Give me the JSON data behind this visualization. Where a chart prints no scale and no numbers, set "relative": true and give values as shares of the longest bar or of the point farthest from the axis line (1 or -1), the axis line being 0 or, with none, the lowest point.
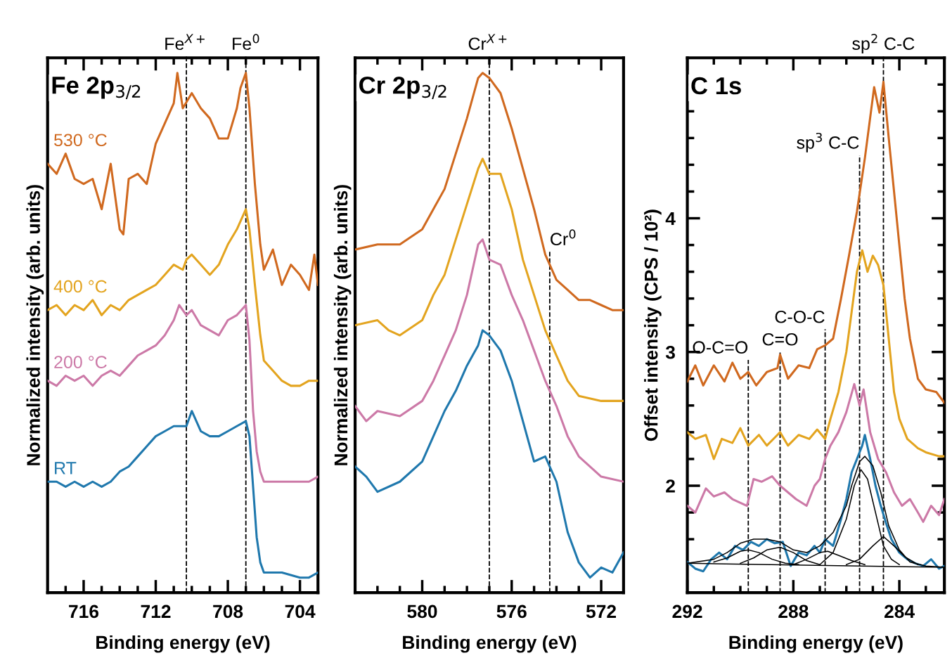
{
  "chart_data": [
    {
      "type": "line",
      "title": "Fe 2p$_{3/2}$",
      "xlabel": "Binding energy (eV)",
      "ylabel": "Normalized intensity (arb. units)",
      "relative": true,
      "xlim": [
        718,
        703
      ],
      "xticks": [
        716,
        712,
        708,
        704,
        {
          "value": 717,
          "label": null
        },
        {
          "value": 715,
          "label": null
        },
        {
          "value": 714,
          "label": null
        },
        {
          "value": 713,
          "label": null
        },
        {
          "value": 711,
          "label": null
        },
        {
          "value": 710,
          "label": null
        },
        {
          "value": 709,
          "label": null
        },
        {
          "value": 707,
          "label": null
        },
        {
          "value": 706,
          "label": null
        },
        {
          "value": 705,
          "label": null
        }
      ],
      "series": [
        {
          "name": "530 °C",
          "color": "#d0691f",
          "x": [
            718,
            717.5,
            717,
            716.5,
            716,
            715.5,
            715,
            714.5,
            714,
            713.8,
            713.5,
            713,
            712.5,
            712,
            711.5,
            711,
            710.8,
            710.5,
            710,
            709.5,
            709,
            708.5,
            708,
            707.5,
            707.3,
            707,
            706.8,
            706.5,
            706.2,
            706,
            705.5,
            705,
            704.5,
            704,
            703.5,
            703.2,
            703
          ],
          "values": [
            0.82,
            0.8,
            0.84,
            0.79,
            0.78,
            0.79,
            0.73,
            0.82,
            0.69,
            0.68,
            0.79,
            0.8,
            0.78,
            0.86,
            0.9,
            0.94,
            1.0,
            0.93,
            0.96,
            0.93,
            0.91,
            0.87,
            0.87,
            0.93,
            0.97,
            1.0,
            0.93,
            0.78,
            0.66,
            0.61,
            0.65,
            0.58,
            0.62,
            0.6,
            0.57,
            0.64,
            0.58
          ]
        },
        {
          "name": "400 °C",
          "color": "#e3a41f",
          "x": [
            718,
            717.5,
            717,
            716.5,
            716,
            715.5,
            715,
            714.5,
            714,
            713.5,
            713,
            712.5,
            712,
            711.5,
            711,
            710.5,
            710.3,
            710,
            709.5,
            709,
            708.5,
            708,
            707.5,
            707,
            706.8,
            706.5,
            706.2,
            706,
            705.5,
            705,
            704.5,
            704,
            703.5,
            703
          ],
          "values": [
            0.53,
            0.54,
            0.52,
            0.54,
            0.53,
            0.55,
            0.52,
            0.54,
            0.53,
            0.55,
            0.56,
            0.57,
            0.58,
            0.6,
            0.62,
            0.61,
            0.63,
            0.64,
            0.62,
            0.6,
            0.62,
            0.66,
            0.69,
            0.73,
            0.69,
            0.58,
            0.48,
            0.43,
            0.41,
            0.39,
            0.38,
            0.38,
            0.39,
            0.39
          ]
        },
        {
          "name": "200 °C",
          "color": "#cc79a7",
          "x": [
            718,
            717.5,
            717,
            716.5,
            716,
            715.5,
            715,
            714.5,
            714,
            713.5,
            713,
            712.5,
            712,
            711.5,
            711,
            710.7,
            710.3,
            710,
            709.5,
            709,
            708.5,
            708,
            707.5,
            707,
            706.8,
            706.6,
            706.4,
            706.2,
            706,
            705,
            704,
            703.5,
            703
          ],
          "values": [
            0.39,
            0.38,
            0.4,
            0.39,
            0.4,
            0.38,
            0.4,
            0.41,
            0.4,
            0.42,
            0.44,
            0.45,
            0.46,
            0.48,
            0.51,
            0.54,
            0.52,
            0.53,
            0.5,
            0.49,
            0.48,
            0.51,
            0.52,
            0.54,
            0.47,
            0.33,
            0.25,
            0.21,
            0.19,
            0.19,
            0.19,
            0.19,
            0.2
          ]
        },
        {
          "name": "RT",
          "color": "#1f78ad",
          "x": [
            718,
            717.5,
            717,
            716.5,
            716,
            715.5,
            715,
            714.5,
            714,
            713.5,
            713,
            712.5,
            712,
            711.5,
            711,
            710.7,
            710.3,
            710,
            709.5,
            709,
            708.5,
            708,
            707.5,
            707,
            706.8,
            706.6,
            706.4,
            706.2,
            706,
            705,
            704,
            703.5,
            703
          ],
          "values": [
            0.19,
            0.19,
            0.18,
            0.19,
            0.18,
            0.19,
            0.18,
            0.19,
            0.21,
            0.22,
            0.24,
            0.26,
            0.28,
            0.29,
            0.3,
            0.3,
            0.3,
            0.33,
            0.29,
            0.28,
            0.28,
            0.29,
            0.3,
            0.31,
            0.28,
            0.18,
            0.08,
            0.03,
            0.01,
            0.01,
            0.0,
            0.0,
            0.01
          ]
        }
      ],
      "ref_lines": [
        {
          "axis": "x",
          "value": 710.3,
          "label": "Fe$^{X+}$",
          "color": "#000000",
          "line_style": "dashed"
        },
        {
          "axis": "x",
          "value": 707.0,
          "label": "Fe$^{0}$",
          "color": "#000000",
          "line_style": "dashed"
        }
      ]
    },
    {
      "type": "line",
      "title": "Cr 2p$_{3/2}$",
      "xlabel": "Binding energy (eV)",
      "ylabel": "Normalized intensity (arb. units)",
      "relative": true,
      "xlim": [
        583,
        571
      ],
      "xticks": [
        580,
        576,
        572,
        {
          "value": 582,
          "label": null
        },
        {
          "value": 581,
          "label": null
        },
        {
          "value": 579,
          "label": null
        },
        {
          "value": 578,
          "label": null
        },
        {
          "value": 577,
          "label": null
        },
        {
          "value": 575,
          "label": null
        },
        {
          "value": 574,
          "label": null
        },
        {
          "value": 573,
          "label": null
        }
      ],
      "series": [
        {
          "color": "#d0691f",
          "x": [
            583,
            582,
            581,
            580,
            579.5,
            579,
            578.5,
            578,
            577.5,
            577.3,
            577,
            576.5,
            576,
            575.5,
            575,
            574.5,
            574,
            573.5,
            573,
            572.5,
            572,
            571.5,
            571
          ],
          "values": [
            0.65,
            0.66,
            0.66,
            0.69,
            0.73,
            0.77,
            0.84,
            0.91,
            0.99,
            1.0,
            0.99,
            0.96,
            0.89,
            0.81,
            0.73,
            0.64,
            0.59,
            0.57,
            0.55,
            0.55,
            0.54,
            0.53,
            0.53
          ]
        },
        {
          "color": "#e3a41f",
          "x": [
            583,
            582,
            581.5,
            581,
            580,
            579.5,
            579,
            578.5,
            578,
            577.5,
            577.3,
            577,
            576.5,
            576,
            575.5,
            575,
            574.5,
            574,
            573.5,
            573,
            572,
            571
          ],
          "values": [
            0.5,
            0.51,
            0.49,
            0.48,
            0.51,
            0.56,
            0.6,
            0.67,
            0.74,
            0.81,
            0.83,
            0.8,
            0.8,
            0.73,
            0.63,
            0.56,
            0.49,
            0.44,
            0.39,
            0.36,
            0.35,
            0.35
          ]
        },
        {
          "color": "#cc79a7",
          "x": [
            583,
            582.5,
            582,
            581,
            580,
            579.5,
            579,
            578.5,
            578,
            577.5,
            577.3,
            577,
            576.5,
            576,
            575.5,
            575,
            574.5,
            574,
            573.5,
            573,
            572,
            571
          ],
          "values": [
            0.34,
            0.31,
            0.33,
            0.32,
            0.35,
            0.39,
            0.44,
            0.49,
            0.56,
            0.66,
            0.67,
            0.63,
            0.62,
            0.56,
            0.51,
            0.45,
            0.39,
            0.34,
            0.28,
            0.24,
            0.2,
            0.19
          ]
        },
        {
          "color": "#1f78ad",
          "x": [
            583,
            582.5,
            582,
            581,
            580,
            579.5,
            579,
            578.5,
            578,
            577.5,
            577.3,
            577,
            576.5,
            576,
            575.5,
            575,
            574.5,
            574,
            573.5,
            573,
            572.5,
            572,
            571.5,
            571
          ],
          "values": [
            0.22,
            0.2,
            0.17,
            0.19,
            0.23,
            0.28,
            0.33,
            0.37,
            0.42,
            0.46,
            0.49,
            0.48,
            0.45,
            0.39,
            0.31,
            0.23,
            0.24,
            0.19,
            0.09,
            0.03,
            0.0,
            0.02,
            0.01,
            0.05
          ]
        }
      ],
      "ref_lines": [
        {
          "axis": "x",
          "value": 577.0,
          "label": "Cr$^{X+}$",
          "color": "#000000",
          "line_style": "dashed"
        },
        {
          "axis": "x",
          "value": 574.3,
          "label": "Cr$^{0}$",
          "color": "#000000",
          "line_style": "dashed"
        }
      ]
    },
    {
      "type": "line",
      "title": "C 1s",
      "xlabel": "Binding energy (eV)",
      "ylabel": "Offset intensity (CPS / 10²)",
      "xlim": [
        292,
        282.3
      ],
      "ylim": [
        1.2,
        5.2
      ],
      "xticks": [
        292,
        288,
        284,
        {
          "value": 291,
          "label": null
        },
        {
          "value": 290,
          "label": null
        },
        {
          "value": 289,
          "label": null
        },
        {
          "value": 287,
          "label": null
        },
        {
          "value": 286,
          "label": null
        },
        {
          "value": 285,
          "label": null
        },
        {
          "value": 283,
          "label": null
        }
      ],
      "yticks": [
        2,
        3,
        4,
        {
          "value": 1.6,
          "label": null
        },
        {
          "value": 1.8,
          "label": null
        },
        {
          "value": 2.2,
          "label": null
        },
        {
          "value": 2.4,
          "label": null
        },
        {
          "value": 2.6,
          "label": null
        },
        {
          "value": 2.8,
          "label": null
        },
        {
          "value": 3.2,
          "label": null
        },
        {
          "value": 3.4,
          "label": null
        },
        {
          "value": 3.6,
          "label": null
        },
        {
          "value": 3.8,
          "label": null
        },
        {
          "value": 4.2,
          "label": null
        },
        {
          "value": 4.4,
          "label": null
        },
        {
          "value": 4.6,
          "label": null
        },
        {
          "value": 4.8,
          "label": null
        },
        {
          "value": 5.0,
          "label": null
        }
      ],
      "series": [
        {
          "color": "#d0691f",
          "x": [
            292,
            291.7,
            291.4,
            291,
            290.6,
            290.3,
            290,
            289.7,
            289.4,
            289,
            288.6,
            288.5,
            288.2,
            287.8,
            287.4,
            287.1,
            286.8,
            286.5,
            286.2,
            285.9,
            285.6,
            285.3,
            284.95,
            284.75,
            284.6,
            284.4,
            284.2,
            284.0,
            283.8,
            283.6,
            283.3,
            283.0,
            282.6,
            282.3
          ],
          "values": [
            2.78,
            2.9,
            2.75,
            2.9,
            2.78,
            2.92,
            2.8,
            2.85,
            2.75,
            2.85,
            2.88,
            2.98,
            2.8,
            2.9,
            2.88,
            3.02,
            3.05,
            3.1,
            3.4,
            3.72,
            4.05,
            4.45,
            4.98,
            4.79,
            5.02,
            4.6,
            4.2,
            3.8,
            3.4,
            3.1,
            2.8,
            2.72,
            2.7,
            2.62
          ]
        },
        {
          "color": "#e3a41f",
          "x": [
            292,
            291.7,
            291.3,
            291,
            290.7,
            290.3,
            290,
            289.7,
            289.3,
            289,
            288.7,
            288.5,
            288.2,
            287.8,
            287.4,
            287.1,
            286.8,
            286.6,
            286.3,
            286.0,
            285.8,
            285.6,
            285.4,
            285.2,
            285.0,
            284.8,
            284.6,
            284.4,
            284.2,
            284.0,
            283.7,
            283.3,
            283.0,
            282.5,
            282.3
          ],
          "values": [
            2.4,
            2.35,
            2.38,
            2.2,
            2.35,
            2.32,
            2.43,
            2.3,
            2.38,
            2.3,
            2.36,
            2.4,
            2.3,
            2.38,
            2.35,
            2.42,
            2.35,
            2.5,
            2.7,
            3.0,
            3.3,
            3.6,
            3.76,
            3.6,
            3.72,
            3.65,
            3.5,
            3.1,
            2.7,
            2.5,
            2.35,
            2.28,
            2.25,
            2.22,
            2.22
          ]
        },
        {
          "color": "#cc79a7",
          "x": [
            292,
            291.7,
            291.3,
            291,
            290.6,
            290.3,
            289.75,
            289.5,
            289.2,
            288.8,
            288.5,
            288.2,
            287.9,
            287.5,
            287.2,
            287.0,
            286.8,
            286.6,
            286.3,
            286.0,
            285.7,
            285.5,
            285.35,
            285.1,
            284.8,
            284.5,
            284.2,
            283.9,
            283.6,
            283.3,
            283.1,
            282.8,
            282.5,
            282.3
          ],
          "values": [
            1.85,
            1.8,
            1.98,
            1.92,
            1.95,
            1.9,
            1.85,
            2.05,
            2.03,
            2.07,
            2.0,
            1.95,
            1.9,
            1.85,
            2.0,
            2.05,
            2.2,
            2.3,
            2.4,
            2.55,
            2.76,
            2.6,
            2.72,
            2.4,
            2.2,
            2.1,
            1.95,
            1.85,
            1.9,
            1.8,
            1.73,
            1.85,
            1.78,
            1.9
          ]
        },
        {
          "color": "#1f78ad",
          "x": [
            292,
            291.7,
            291.4,
            291.1,
            290.8,
            290.5,
            290.2,
            289.9,
            289.6,
            289.3,
            289.0,
            288.7,
            288.4,
            288.1,
            287.8,
            287.5,
            287.2,
            287.0,
            286.8,
            286.5,
            286.2,
            286.0,
            285.8,
            285.6,
            285.4,
            285.3,
            285.1,
            284.9,
            284.7,
            284.5,
            284.3,
            284.0,
            283.7,
            283.4,
            283.1,
            282.8,
            282.5,
            282.3
          ],
          "values": [
            1.43,
            1.38,
            1.36,
            1.45,
            1.5,
            1.45,
            1.55,
            1.52,
            1.58,
            1.55,
            1.6,
            1.57,
            1.58,
            1.4,
            1.5,
            1.48,
            1.55,
            1.5,
            1.6,
            1.55,
            1.75,
            1.9,
            2.1,
            2.2,
            2.3,
            2.38,
            2.2,
            2.0,
            1.85,
            1.72,
            1.6,
            1.5,
            1.45,
            1.42,
            1.4,
            1.45,
            1.38,
            1.4
          ]
        },
        {
          "color": "#000000",
          "x": [
            292,
            282.3
          ],
          "values": [
            1.42,
            1.39
          ]
        },
        {
          "color": "#000000",
          "x": [
            291,
            290.5,
            290,
            289.7,
            289.3,
            288.8,
            288.3,
            287.8
          ],
          "values": [
            1.43,
            1.46,
            1.51,
            1.52,
            1.5,
            1.45,
            1.42,
            1.41
          ]
        },
        {
          "color": "#000000",
          "x": [
            290,
            289.5,
            289,
            288.5,
            288,
            287.5,
            287
          ],
          "values": [
            1.42,
            1.46,
            1.52,
            1.54,
            1.5,
            1.44,
            1.41
          ]
        },
        {
          "color": "#000000",
          "x": [
            288,
            287.5,
            287,
            286.7,
            286.3,
            285.8,
            285.3
          ],
          "values": [
            1.41,
            1.45,
            1.5,
            1.51,
            1.48,
            1.44,
            1.41
          ]
        },
        {
          "color": "#000000",
          "x": [
            287,
            286.5,
            286,
            285.7,
            285.45,
            285.2,
            284.9,
            284.6,
            284.3,
            284
          ],
          "values": [
            1.41,
            1.5,
            1.75,
            2.0,
            2.12,
            2.05,
            1.8,
            1.55,
            1.45,
            1.41
          ]
        },
        {
          "color": "#000000",
          "x": [
            286,
            285.5,
            285,
            284.6,
            284.2,
            283.8,
            283.3
          ],
          "values": [
            1.41,
            1.45,
            1.55,
            1.62,
            1.55,
            1.47,
            1.41
          ]
        },
        {
          "color": "#000000",
          "x": [
            292,
            291,
            290.5,
            290,
            289.5,
            289,
            288.5,
            288,
            287.5,
            287,
            286.5,
            286,
            285.8,
            285.5,
            285.3,
            285,
            284.7,
            284.4,
            284,
            283.6,
            283,
            282.3
          ],
          "values": [
            1.42,
            1.45,
            1.5,
            1.57,
            1.6,
            1.6,
            1.58,
            1.52,
            1.5,
            1.55,
            1.65,
            1.85,
            2.0,
            2.18,
            2.22,
            2.15,
            1.95,
            1.7,
            1.52,
            1.43,
            1.4,
            1.39
          ]
        }
      ],
      "ref_lines": [
        {
          "axis": "x",
          "value": 289.7,
          "label": "O-C=O",
          "color": "#000000",
          "line_style": "dashed"
        },
        {
          "axis": "x",
          "value": 288.5,
          "label": "C=O",
          "color": "#000000",
          "line_style": "dashed"
        },
        {
          "axis": "x",
          "value": 286.8,
          "label": "C-O-C",
          "color": "#000000",
          "line_style": "dashed"
        },
        {
          "axis": "x",
          "value": 285.5,
          "label": "sp$^{3}$ C-C",
          "color": "#000000",
          "line_style": "dashed"
        },
        {
          "axis": "x",
          "value": 284.6,
          "label": "sp$^{2}$ C-C",
          "color": "#000000",
          "line_style": "dashed"
        }
      ]
    }
  ]
}
